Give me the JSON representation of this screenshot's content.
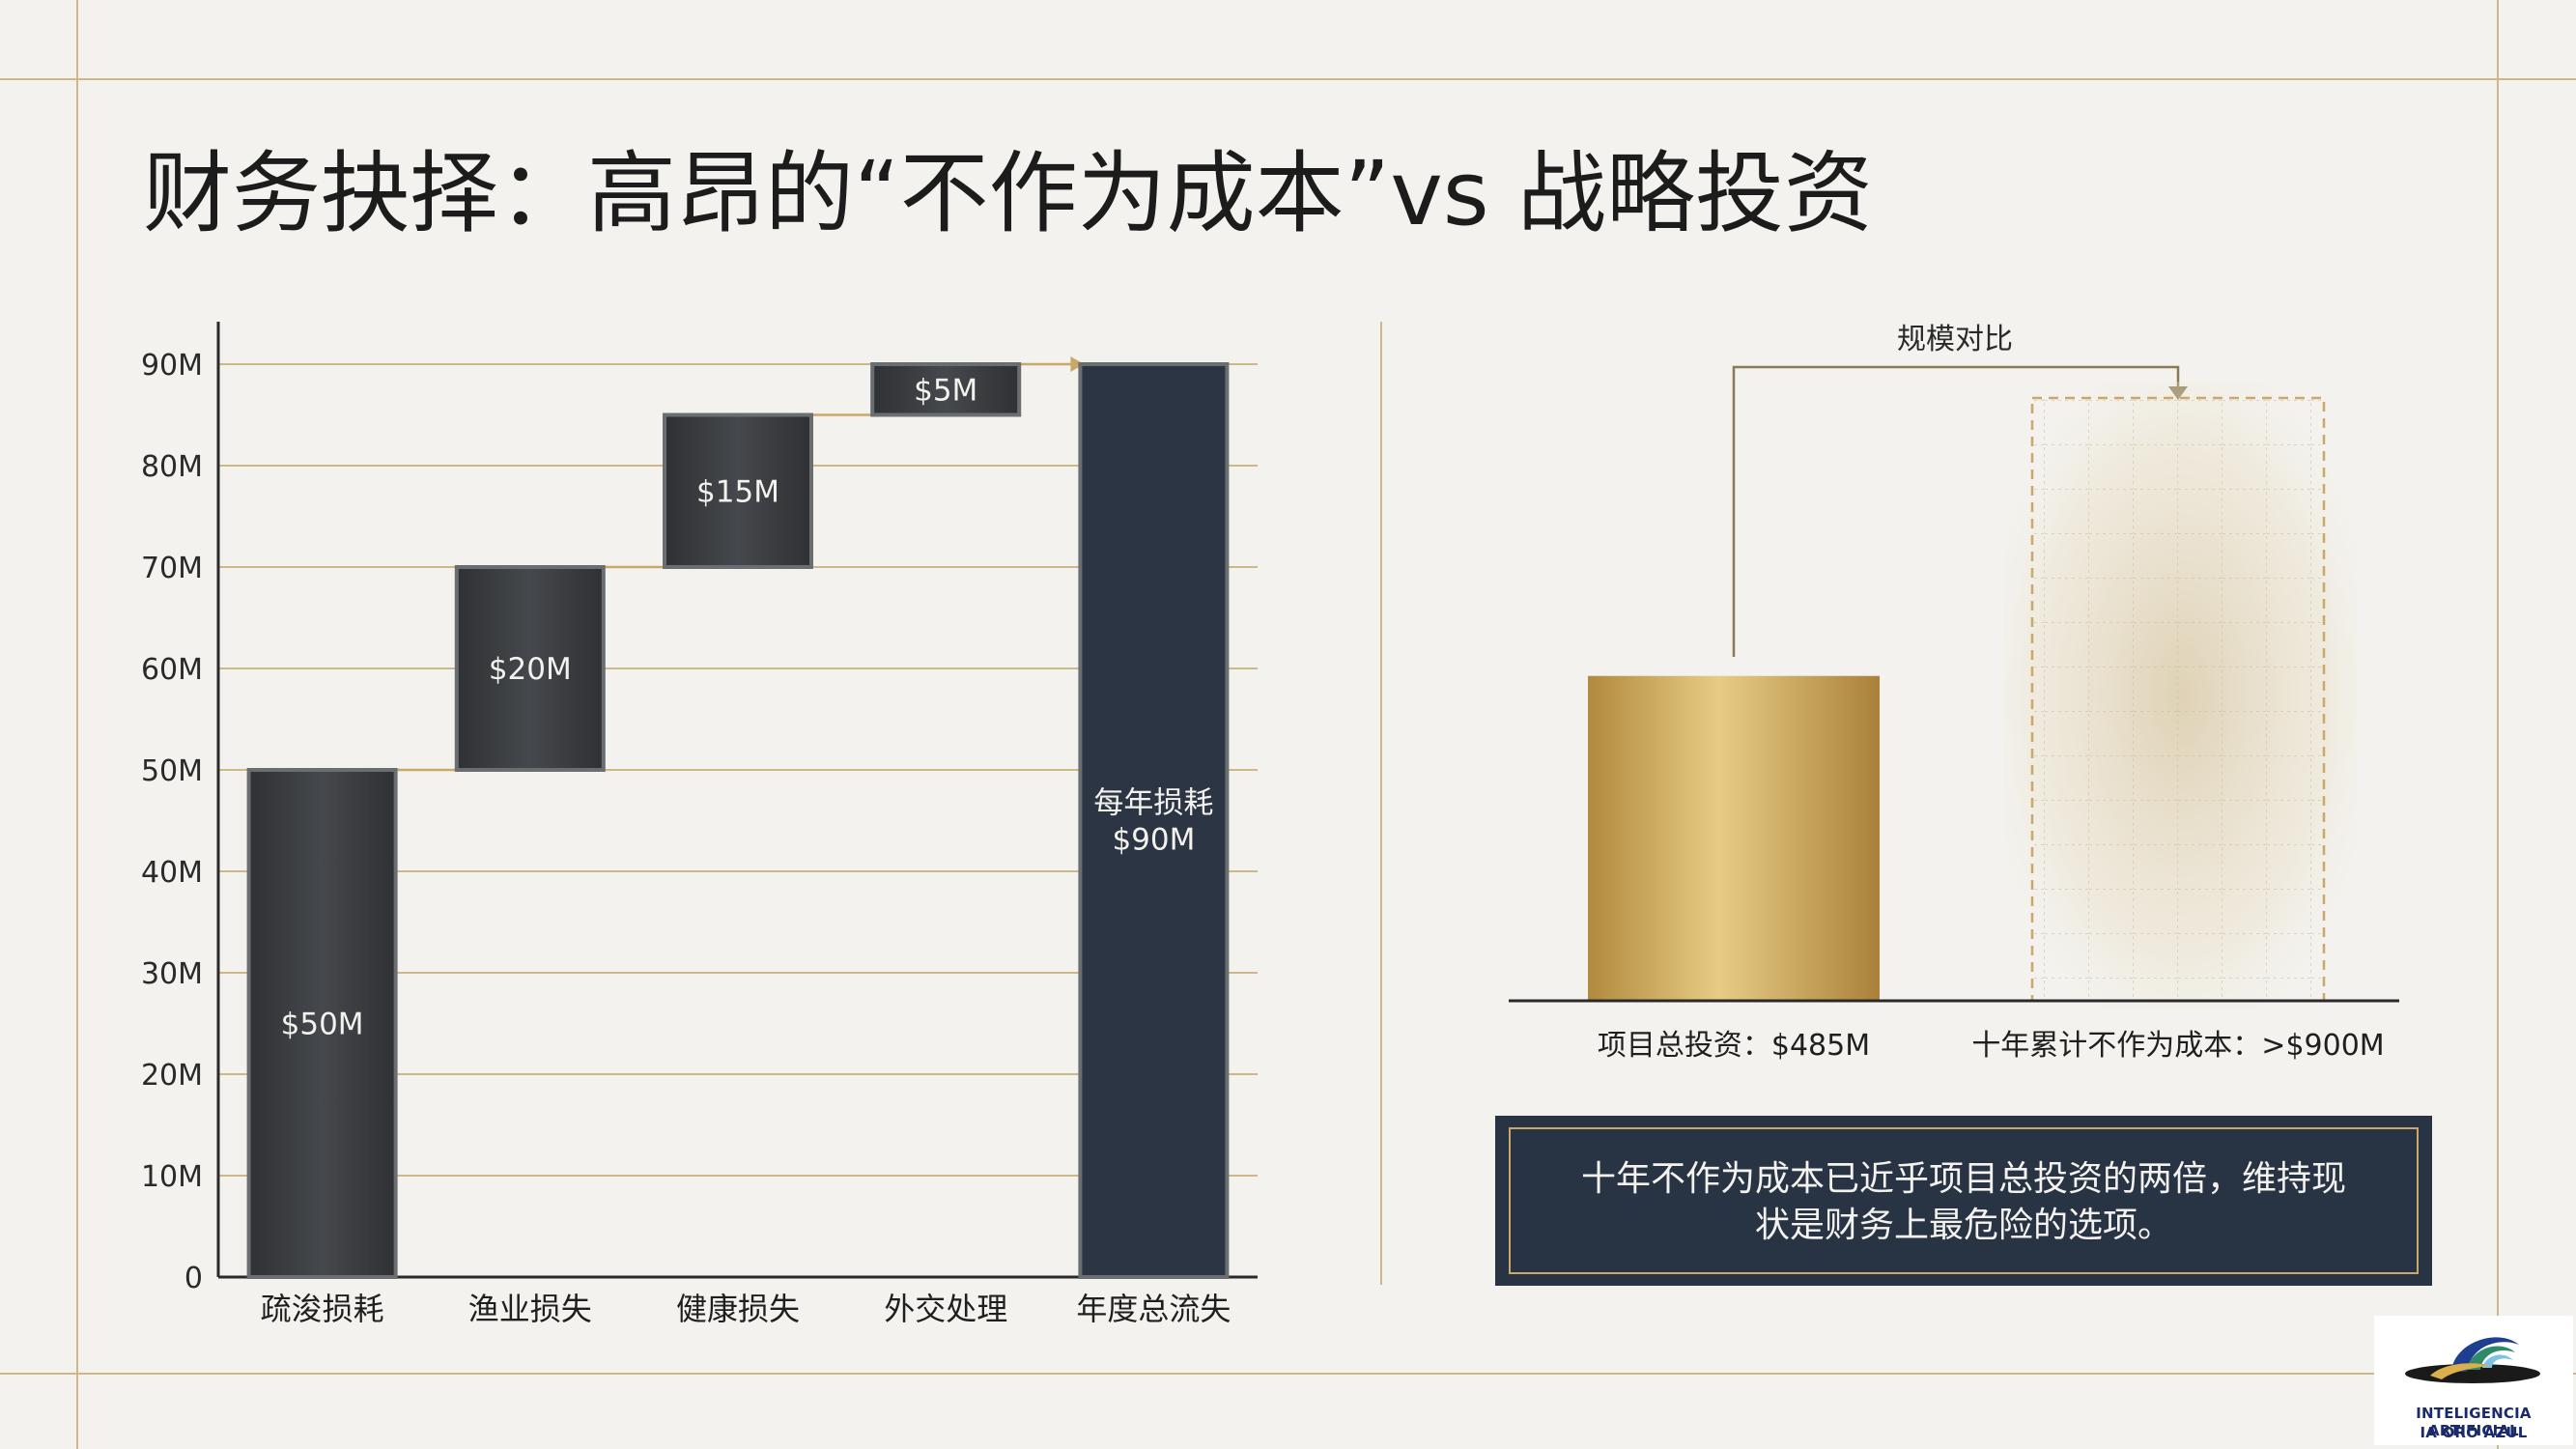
{
  "title": "财务抉择：高昂的“不作为成本”vs 战略投资",
  "colors": {
    "background": "#f3f2ee",
    "frame_line": "#cdb88a",
    "dark_bar": "#3a3d40",
    "total_bar": "#2b3544",
    "gold": "#c9a24a",
    "connector": "#c9a86a",
    "callout_bg": "#283344"
  },
  "chart_data": [
    {
      "type": "waterfall",
      "categories": [
        "疏浚损耗",
        "渔业损失",
        "健康损失",
        "外交处理",
        "年度总流失"
      ],
      "values": [
        50,
        20,
        15,
        5,
        90
      ],
      "bar_kinds": [
        "increment",
        "increment",
        "increment",
        "increment",
        "total"
      ],
      "data_labels": [
        "$50M",
        "$20M",
        "$15M",
        "$5M",
        "每年损耗\n$90M"
      ],
      "y_ticks": [
        "0",
        "10M",
        "20M",
        "30M",
        "40M",
        "50M",
        "60M",
        "70M",
        "80M",
        "90M"
      ],
      "ylim": [
        0,
        90
      ],
      "y_unit": "M",
      "grid": true
    },
    {
      "type": "bar",
      "title": "规模对比",
      "categories": [
        "项目总投资：$485M",
        "十年累计不作为成本：>$900M"
      ],
      "values": [
        485,
        900
      ],
      "bar_styles": [
        "solid-gold",
        "dashed-outline"
      ],
      "annotation": "十年不作为成本已近乎项目总投资的两倍，维持现状是财务上最危险的选项。"
    }
  ],
  "logo": {
    "line1": "INTELIGENCIA ARTIFICIAL",
    "line2": "IA ORO AZUL"
  }
}
